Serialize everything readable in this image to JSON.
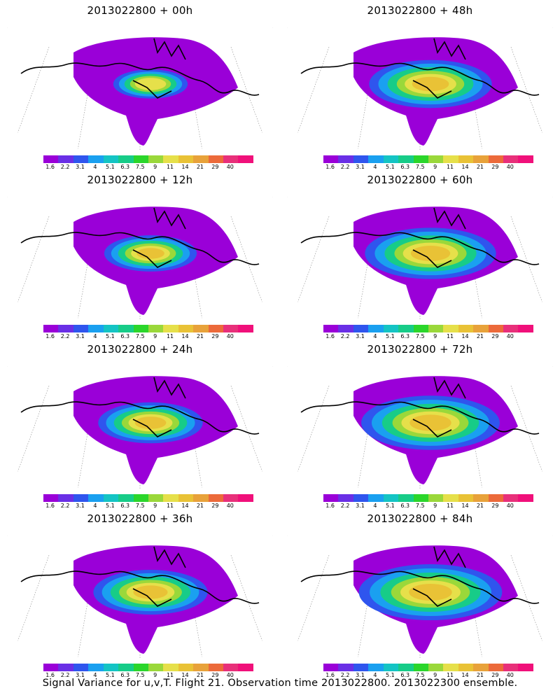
{
  "colorbar": {
    "ticks": [
      "1.6",
      "2.2",
      "3.1",
      "4",
      "5.1",
      "6.3",
      "7.5",
      "9",
      "11",
      "14",
      "21",
      "29",
      "40"
    ],
    "colors": [
      "#9a00d8",
      "#6a2fe6",
      "#2f55ee",
      "#1aa0f0",
      "#14c4c4",
      "#17cc88",
      "#2bd62b",
      "#9ad83a",
      "#e6e04a",
      "#e9c236",
      "#e8a23a",
      "#ec6a3a",
      "#e8307a",
      "#f0107a"
    ]
  },
  "panels": [
    {
      "title": "2013022800 + 00h",
      "level": 0.15
    },
    {
      "title": "2013022800 + 48h",
      "level": 0.55
    },
    {
      "title": "2013022800 + 12h",
      "level": 0.3
    },
    {
      "title": "2013022800 + 60h",
      "level": 0.62
    },
    {
      "title": "2013022800 + 24h",
      "level": 0.4
    },
    {
      "title": "2013022800 + 72h",
      "level": 0.68
    },
    {
      "title": "2013022800 + 36h",
      "level": 0.48
    },
    {
      "title": "2013022800 + 84h",
      "level": 0.72
    }
  ],
  "footer": "Signal Variance for u,v,T. Flight 21. Observation time 2013022800. 2013022300 ensemble."
}
